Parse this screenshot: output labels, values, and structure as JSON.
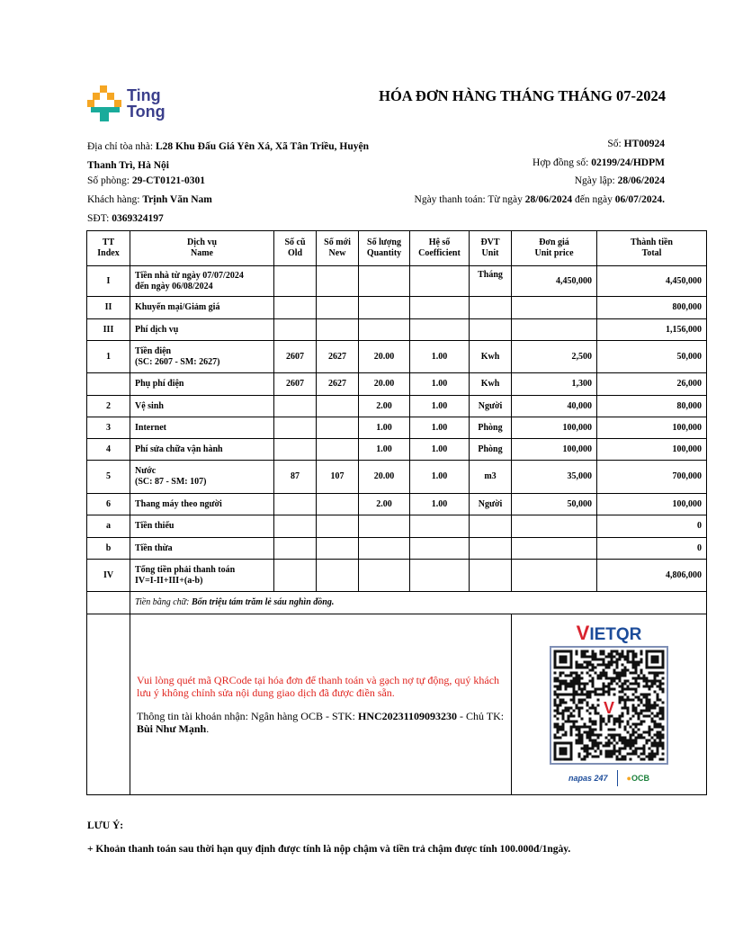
{
  "logo": {
    "line1": "Ting",
    "line2": "Tong",
    "colors": {
      "orange": "#f5a623",
      "teal": "#1aab9b",
      "text": "#3b3f8c"
    }
  },
  "title": "HÓA ĐƠN HÀNG THÁNG THÁNG 07-2024",
  "left_info": {
    "address_label": "Địa chỉ tòa nhà: ",
    "address_value": "L28 Khu Đấu Giá Yên Xá, Xã Tân Triều, Huyện Thanh Trì, Hà Nội",
    "room_label": "Số phòng: ",
    "room_value": "29-CT0121-0301",
    "customer_label": "Khách hàng: ",
    "customer_value": "Trịnh Văn Nam",
    "phone_label": "SĐT: ",
    "phone_value": "0369324197"
  },
  "right_info": {
    "no_label": "Số: ",
    "no_value": "HT00924",
    "contract_label": "Hợp đồng số: ",
    "contract_value": "02199/24/HDPM",
    "date_label": "Ngày lập: ",
    "date_value": "28/06/2024",
    "pay_label": "Ngày thanh toán: Từ ngày ",
    "pay_from": "28/06/2024",
    "pay_mid": " đến ngày ",
    "pay_to": "06/07/2024",
    "pay_end": "."
  },
  "table": {
    "headers": [
      [
        "TT",
        "Index"
      ],
      [
        "Dịch vụ",
        "Name"
      ],
      [
        "Số cũ",
        "Old"
      ],
      [
        "Số mới",
        "New"
      ],
      [
        "Số lượng",
        "Quantity"
      ],
      [
        "Hệ số",
        "Coefficient"
      ],
      [
        "ĐVT",
        "Unit"
      ],
      [
        "Đơn giá",
        "Unit price"
      ],
      [
        "Thành tiền",
        "Total"
      ]
    ],
    "rows": [
      {
        "index": "I",
        "name": "Tiền nhà từ ngày 07/07/2024",
        "name2": "đến ngày 06/08/2024",
        "old": "",
        "new": "",
        "qty": "",
        "coef": "",
        "unit": "Tháng",
        "price": "4,450,000",
        "total": "4,450,000"
      },
      {
        "index": "II",
        "name": "Khuyến mại/Giảm giá",
        "old": "",
        "new": "",
        "qty": "",
        "coef": "",
        "unit": "",
        "price": "",
        "total": "800,000"
      },
      {
        "index": "III",
        "name": "Phí dịch vụ",
        "old": "",
        "new": "",
        "qty": "",
        "coef": "",
        "unit": "",
        "price": "",
        "total": "1,156,000"
      },
      {
        "index": "1",
        "name": "Tiền điện",
        "name2": "(SC: 2607 - SM: 2627)",
        "old": "2607",
        "new": "2627",
        "qty": "20.00",
        "coef": "1.00",
        "unit": "Kwh",
        "price": "2,500",
        "total": "50,000"
      },
      {
        "index": "",
        "name": "Phụ phí điện",
        "old": "2607",
        "new": "2627",
        "qty": "20.00",
        "coef": "1.00",
        "unit": "Kwh",
        "price": "1,300",
        "total": "26,000"
      },
      {
        "index": "2",
        "name": "Vệ sinh",
        "old": "",
        "new": "",
        "qty": "2.00",
        "coef": "1.00",
        "unit": "Người",
        "price": "40,000",
        "total": "80,000"
      },
      {
        "index": "3",
        "name": "Internet",
        "old": "",
        "new": "",
        "qty": "1.00",
        "coef": "1.00",
        "unit": "Phòng",
        "price": "100,000",
        "total": "100,000"
      },
      {
        "index": "4",
        "name": "Phí sửa chữa vận hành",
        "old": "",
        "new": "",
        "qty": "1.00",
        "coef": "1.00",
        "unit": "Phòng",
        "price": "100,000",
        "total": "100,000"
      },
      {
        "index": "5",
        "name": "Nước",
        "name2": "(SC: 87 - SM: 107)",
        "old": "87",
        "new": "107",
        "qty": "20.00",
        "coef": "1.00",
        "unit": "m3",
        "price": "35,000",
        "total": "700,000"
      },
      {
        "index": "6",
        "name": "Thang máy theo người",
        "old": "",
        "new": "",
        "qty": "2.00",
        "coef": "1.00",
        "unit": "Người",
        "price": "50,000",
        "total": "100,000"
      },
      {
        "index": "a",
        "name": "Tiền thiếu",
        "old": "",
        "new": "",
        "qty": "",
        "coef": "",
        "unit": "",
        "price": "",
        "total": "0"
      },
      {
        "index": "b",
        "name": "Tiền thừa",
        "old": "",
        "new": "",
        "qty": "",
        "coef": "",
        "unit": "",
        "price": "",
        "total": "0"
      },
      {
        "index": "IV",
        "name": "Tổng tiền phải thanh toán",
        "name2": "IV=I-II+III+(a-b)",
        "old": "",
        "new": "",
        "qty": "",
        "coef": "",
        "unit": "",
        "price": "",
        "total": "4,806,000"
      }
    ],
    "words_label": "Tiền bằng chữ: ",
    "words_value": "Bốn triệu tám trăm lẻ sáu nghìn đồng."
  },
  "payment": {
    "notice": "Vui lòng quét mã QRCode tại hóa đơn để thanh toán và gạch nợ tự động, quý khách lưu ý không chỉnh sửa nội dung giao dịch đã được điền sẵn.",
    "account_prefix": "Thông tin tài khoản nhận: Ngân hàng OCB - STK: ",
    "account_number": "HNC20231109093230",
    "holder_prefix": " - Chủ TK: ",
    "holder_name": "Bùi Như Mạnh",
    "holder_end": ".",
    "vietqr_v": "V",
    "vietqr_rest": "IETQR",
    "napas": "napas 247",
    "bank_logo": "OCB",
    "colors": {
      "notice": "#e0241e",
      "vietqr_red": "#d9232e",
      "vietqr_blue": "#1c4c9a"
    }
  },
  "note": {
    "title": "LƯU Ý:",
    "line": "+ Khoản thanh toán sau thời hạn quy định được tính là nộp chậm và tiền trả chậm được tính 100.000đ/1ngày."
  }
}
